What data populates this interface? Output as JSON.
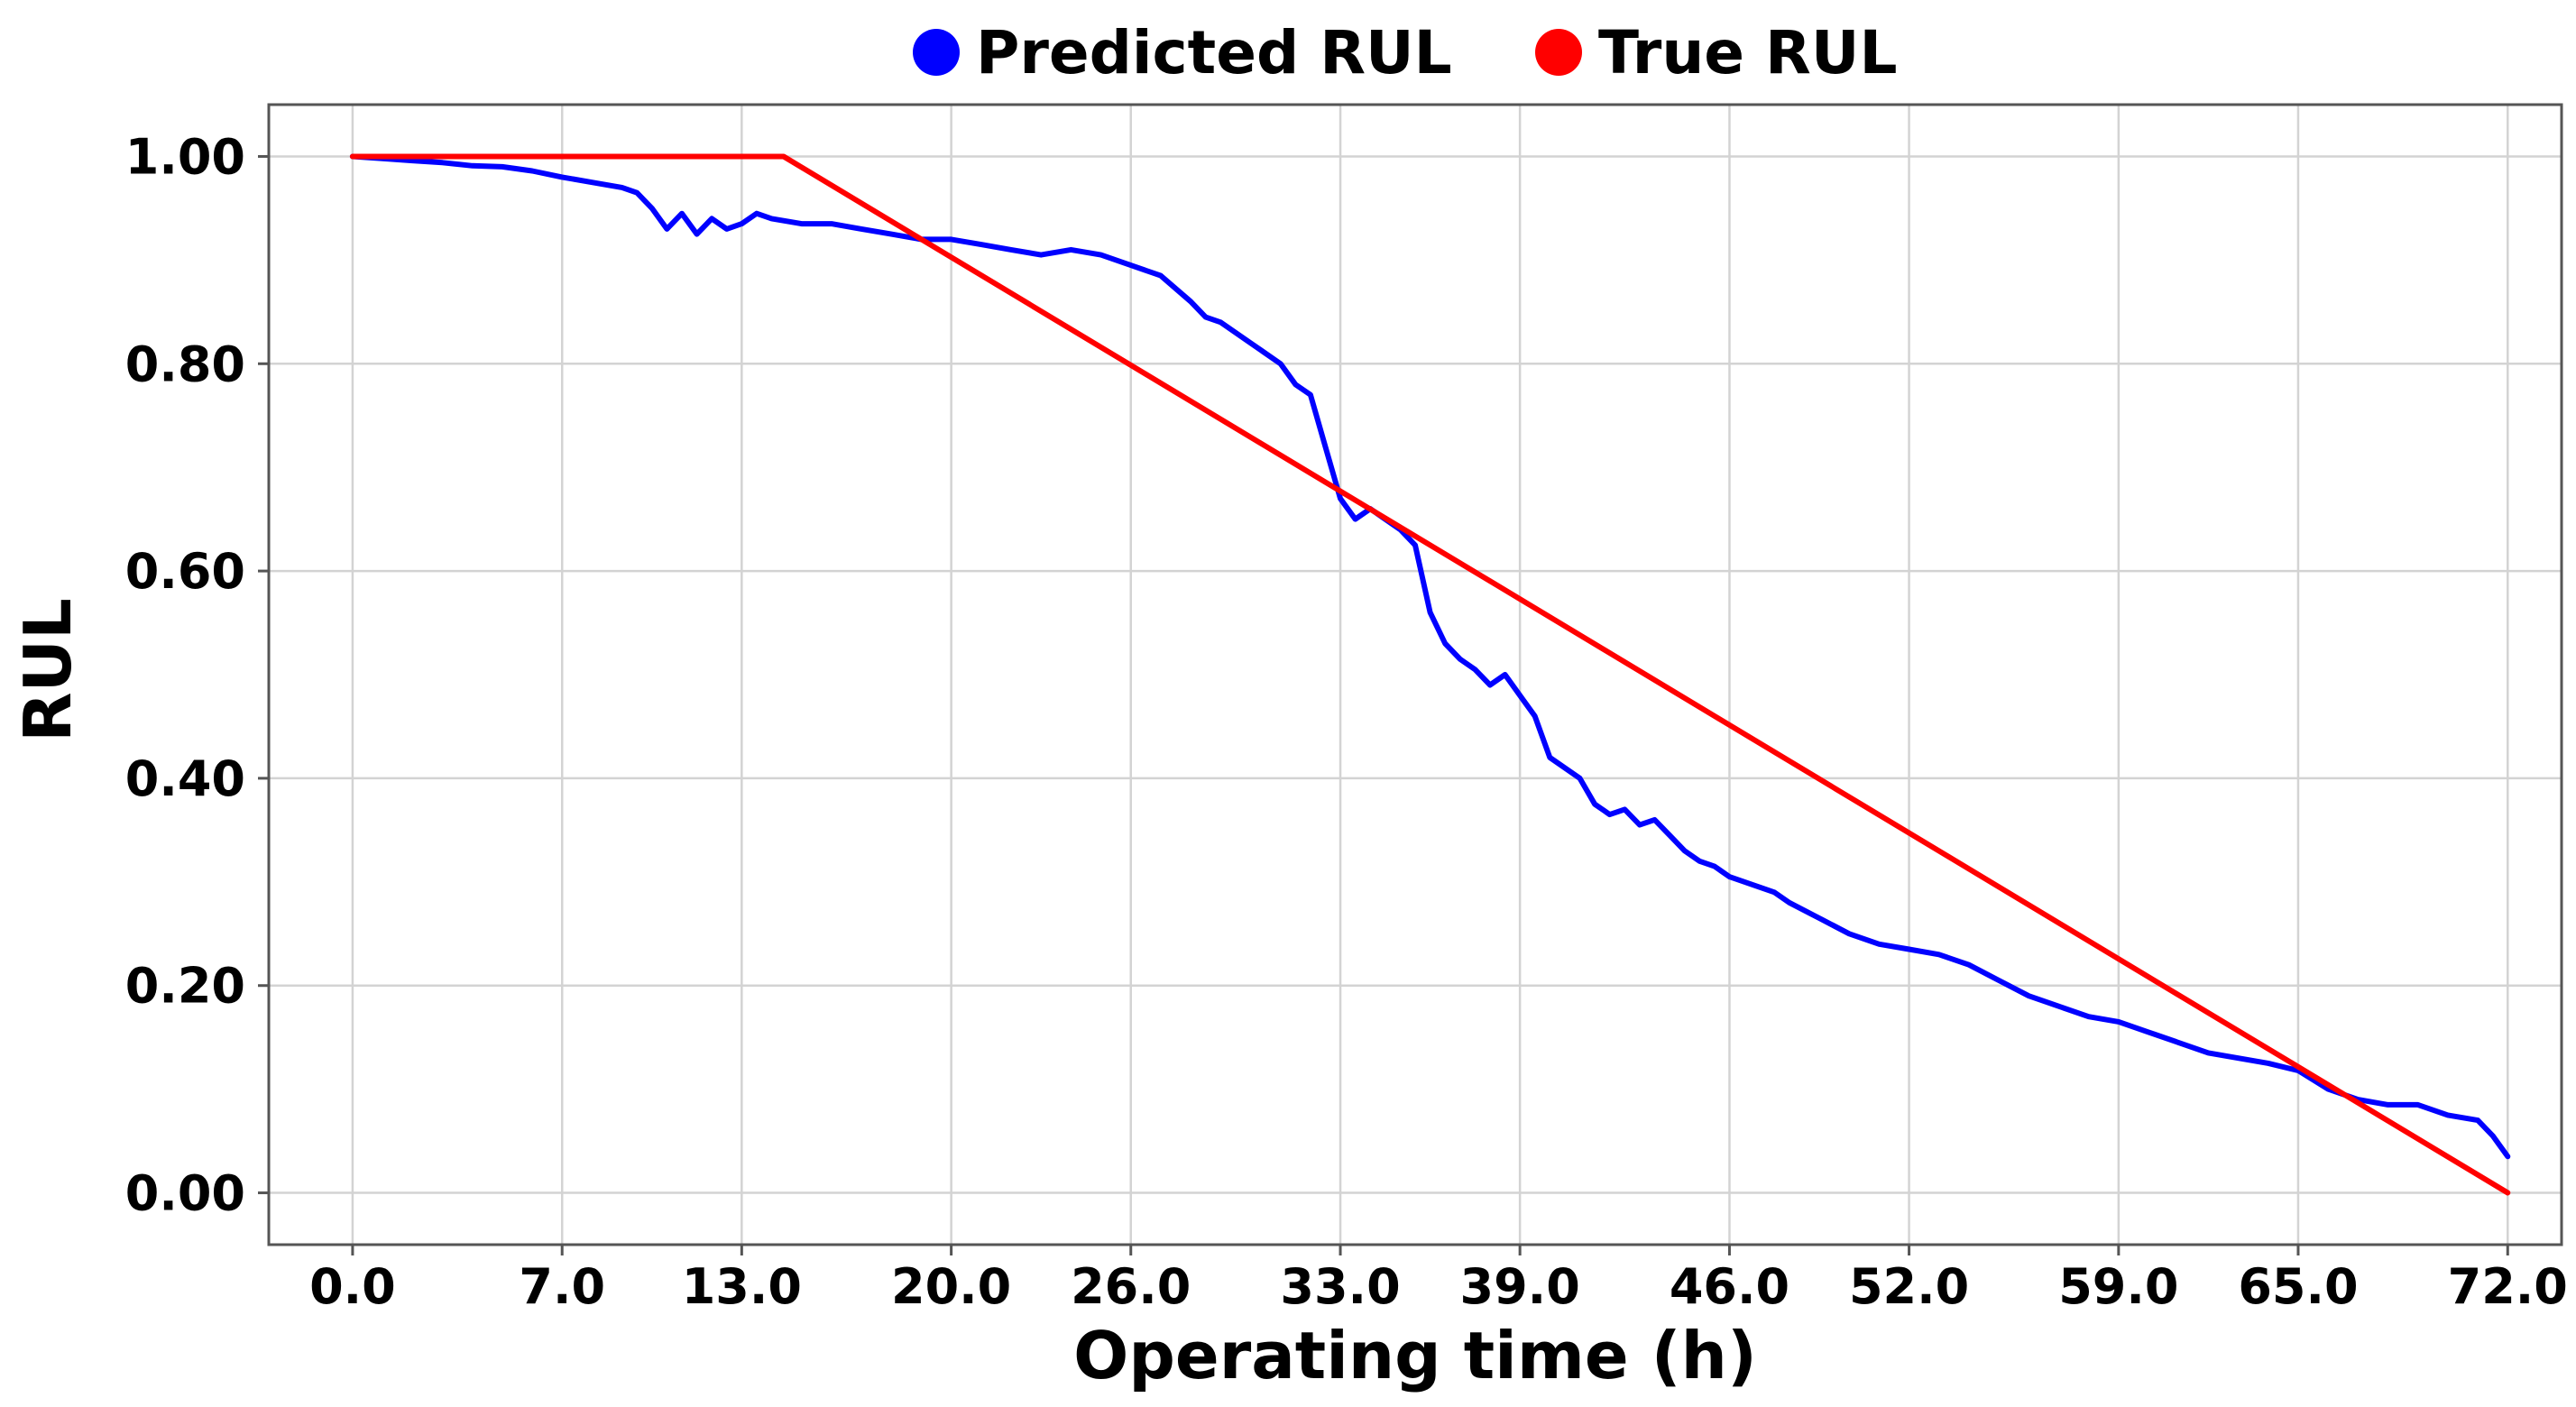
{
  "chart_data": {
    "type": "line",
    "xlabel": "Operating time (h)",
    "ylabel": "RUL",
    "xlim": [
      -2.8,
      73.8
    ],
    "ylim": [
      -0.05,
      1.05
    ],
    "grid": true,
    "legend_placement": "top-center, outside plot",
    "x_ticks": [
      0.0,
      7.0,
      13.0,
      20.0,
      26.0,
      33.0,
      39.0,
      46.0,
      52.0,
      59.0,
      65.0,
      72.0
    ],
    "x_tick_labels": [
      "0.0",
      "7.0",
      "13.0",
      "20.0",
      "26.0",
      "33.0",
      "39.0",
      "46.0",
      "52.0",
      "59.0",
      "65.0",
      "72.0"
    ],
    "y_ticks": [
      0.0,
      0.2,
      0.4,
      0.6,
      0.8,
      1.0
    ],
    "y_tick_labels": [
      "0.00",
      "0.20",
      "0.40",
      "0.60",
      "0.80",
      "1.00"
    ],
    "series": [
      {
        "name": "Predicted RUL",
        "color": "#0000ff",
        "x": [
          0,
          1,
          2,
          3,
          4,
          5,
          6,
          7,
          8,
          9,
          9.5,
          10,
          10.5,
          11,
          11.5,
          12,
          12.5,
          13,
          13.5,
          14,
          15,
          16,
          17,
          18,
          19,
          20,
          21,
          22,
          23,
          24,
          25,
          26,
          27,
          28,
          28.5,
          29,
          30,
          31,
          31.5,
          32,
          32.5,
          33,
          33.5,
          34,
          34.5,
          35,
          35.5,
          36,
          36.5,
          37,
          37.5,
          38,
          38.5,
          39,
          39.5,
          40,
          40.5,
          41,
          41.5,
          42,
          42.5,
          43,
          43.5,
          44,
          44.5,
          45,
          45.5,
          46,
          46.5,
          47,
          47.5,
          48,
          49,
          50,
          51,
          52,
          53,
          54,
          55,
          56,
          57,
          58,
          59,
          60,
          61,
          62,
          63,
          64,
          65,
          66,
          67,
          68,
          69,
          70,
          71,
          71.5,
          72
        ],
        "y": [
          1.0,
          0.998,
          0.996,
          0.994,
          0.991,
          0.99,
          0.986,
          0.98,
          0.975,
          0.97,
          0.965,
          0.95,
          0.93,
          0.945,
          0.925,
          0.94,
          0.93,
          0.935,
          0.945,
          0.94,
          0.935,
          0.935,
          0.93,
          0.925,
          0.92,
          0.92,
          0.915,
          0.91,
          0.905,
          0.91,
          0.905,
          0.895,
          0.885,
          0.86,
          0.845,
          0.84,
          0.82,
          0.8,
          0.78,
          0.77,
          0.72,
          0.67,
          0.65,
          0.66,
          0.65,
          0.64,
          0.625,
          0.56,
          0.53,
          0.515,
          0.505,
          0.49,
          0.5,
          0.48,
          0.46,
          0.42,
          0.41,
          0.4,
          0.375,
          0.365,
          0.37,
          0.355,
          0.36,
          0.345,
          0.33,
          0.32,
          0.315,
          0.305,
          0.3,
          0.295,
          0.29,
          0.28,
          0.265,
          0.25,
          0.24,
          0.235,
          0.23,
          0.22,
          0.205,
          0.19,
          0.18,
          0.17,
          0.165,
          0.155,
          0.145,
          0.135,
          0.13,
          0.125,
          0.118,
          0.1,
          0.09,
          0.085,
          0.085,
          0.075,
          0.07,
          0.055,
          0.035
        ]
      },
      {
        "name": "True RUL",
        "color": "#ff0000",
        "x": [
          0,
          14.4,
          72
        ],
        "y": [
          1.0,
          1.0,
          0.0
        ]
      }
    ]
  }
}
